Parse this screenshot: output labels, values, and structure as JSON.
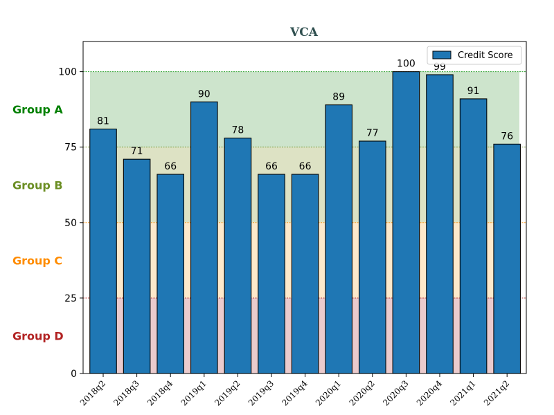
{
  "chart_data": {
    "type": "bar",
    "title": "VCA",
    "categories": [
      "2018q2",
      "2018q3",
      "2018q4",
      "2019q1",
      "2019q2",
      "2019q3",
      "2019q4",
      "2020q1",
      "2020q2",
      "2020q3",
      "2020q4",
      "2021q1",
      "2021q2"
    ],
    "series": [
      {
        "name": "Credit Score",
        "values": [
          81,
          71,
          66,
          90,
          78,
          66,
          66,
          89,
          77,
          100,
          99,
          91,
          76
        ],
        "color": "#1f77b4"
      }
    ],
    "ylim": [
      0,
      110
    ],
    "yticks": [
      0,
      25,
      50,
      75,
      100
    ],
    "legend_position": "top-right",
    "grid": false,
    "bands": [
      {
        "label": "Group A",
        "from": 75,
        "to": 100,
        "fill": "#cde4cc",
        "line_color": "#2ca02c",
        "label_color": "#008000"
      },
      {
        "label": "Group B",
        "from": 50,
        "to": 75,
        "fill": "#dde2c4",
        "line_color": "#6b8e23",
        "label_color": "#6b8e23"
      },
      {
        "label": "Group C",
        "from": 25,
        "to": 50,
        "fill": "#fde9cb",
        "line_color": "#ff8c00",
        "label_color": "#ff8c00"
      },
      {
        "label": "Group D",
        "from": 0,
        "to": 25,
        "fill": "#ebcbcd",
        "line_color": "#b22222",
        "label_color": "#b22222"
      }
    ]
  }
}
